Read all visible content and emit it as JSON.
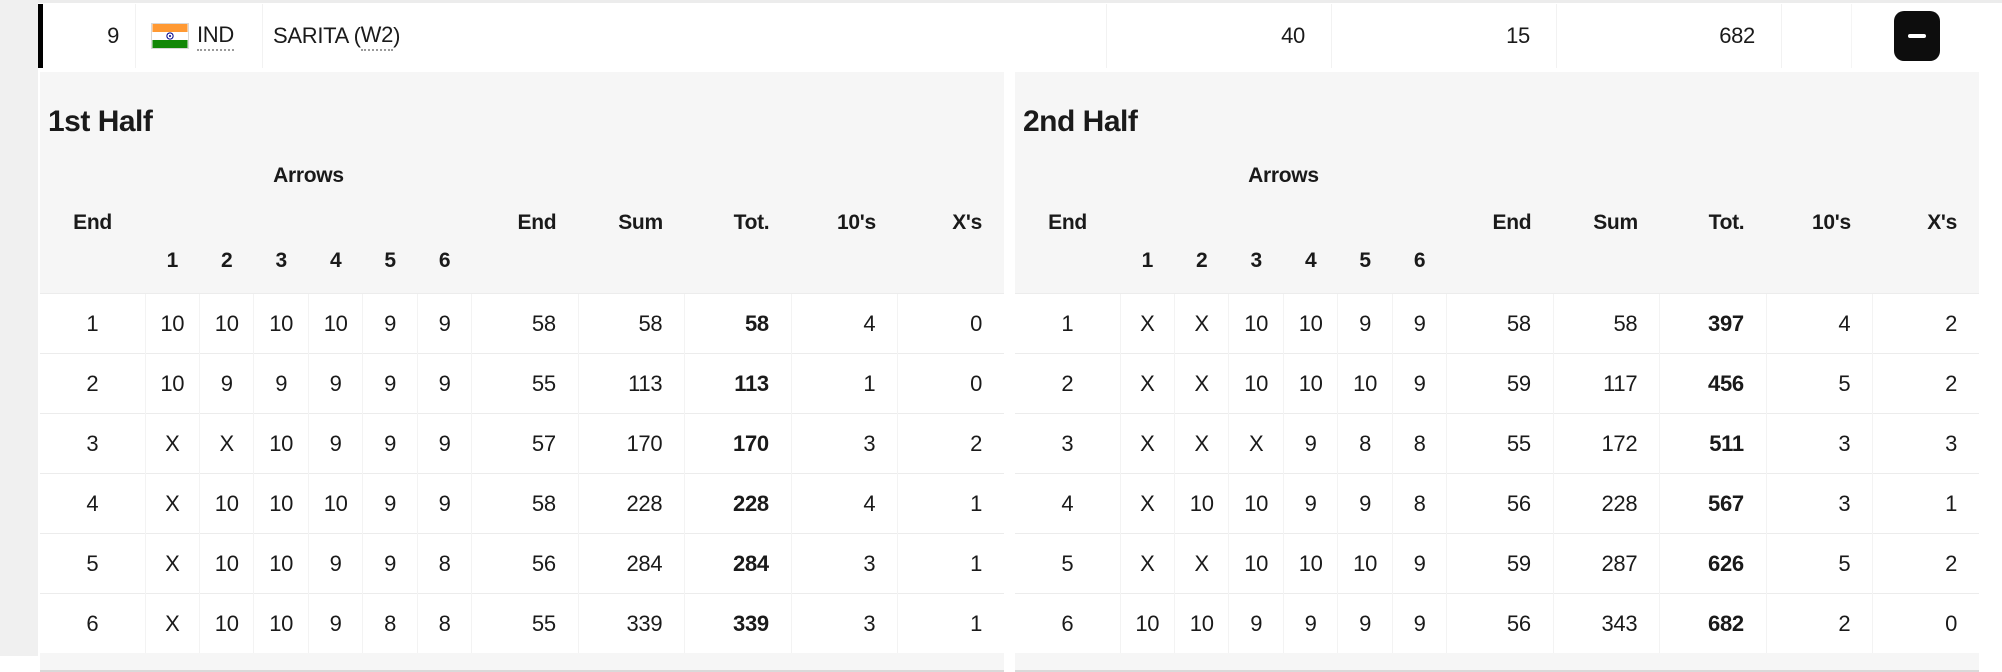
{
  "athlete_row": {
    "rank": "9",
    "noc": "IND",
    "name": "SARITA (",
    "category": "W2",
    "name_suffix": ")",
    "tens_total": "40",
    "x_total": "15",
    "score_total": "682",
    "collapse_button": {
      "icon": "minus"
    }
  },
  "flag": {
    "name": "india-flag",
    "saffron": "#FF9933",
    "white": "#FFFFFF",
    "green": "#138808",
    "chakra": "#000088"
  },
  "colors": {
    "row_accent_border": "#000000",
    "panel_background": "#f6f6f6",
    "collapse_button_background": "#0d0d0d"
  },
  "table_headers": {
    "end": "End",
    "arrows": "Arrows",
    "arrow_numbers": [
      "1",
      "2",
      "3",
      "4",
      "5",
      "6"
    ],
    "end_score": "End",
    "sum": "Sum",
    "total": "Tot.",
    "tens": "10's",
    "xs": "X's"
  },
  "halves": [
    {
      "title": "1st Half",
      "rows": [
        {
          "end": "1",
          "arrows": [
            "10",
            "10",
            "10",
            "10",
            "9",
            "9"
          ],
          "end_score": "58",
          "sum": "58",
          "total": "58",
          "tens": "4",
          "xs": "0"
        },
        {
          "end": "2",
          "arrows": [
            "10",
            "9",
            "9",
            "9",
            "9",
            "9"
          ],
          "end_score": "55",
          "sum": "113",
          "total": "113",
          "tens": "1",
          "xs": "0"
        },
        {
          "end": "3",
          "arrows": [
            "X",
            "X",
            "10",
            "9",
            "9",
            "9"
          ],
          "end_score": "57",
          "sum": "170",
          "total": "170",
          "tens": "3",
          "xs": "2"
        },
        {
          "end": "4",
          "arrows": [
            "X",
            "10",
            "10",
            "10",
            "9",
            "9"
          ],
          "end_score": "58",
          "sum": "228",
          "total": "228",
          "tens": "4",
          "xs": "1"
        },
        {
          "end": "5",
          "arrows": [
            "X",
            "10",
            "10",
            "9",
            "9",
            "8"
          ],
          "end_score": "56",
          "sum": "284",
          "total": "284",
          "tens": "3",
          "xs": "1"
        },
        {
          "end": "6",
          "arrows": [
            "X",
            "10",
            "10",
            "9",
            "8",
            "8"
          ],
          "end_score": "55",
          "sum": "339",
          "total": "339",
          "tens": "3",
          "xs": "1"
        }
      ]
    },
    {
      "title": "2nd Half",
      "rows": [
        {
          "end": "1",
          "arrows": [
            "X",
            "X",
            "10",
            "10",
            "9",
            "9"
          ],
          "end_score": "58",
          "sum": "58",
          "total": "397",
          "tens": "4",
          "xs": "2"
        },
        {
          "end": "2",
          "arrows": [
            "X",
            "X",
            "10",
            "10",
            "10",
            "9"
          ],
          "end_score": "59",
          "sum": "117",
          "total": "456",
          "tens": "5",
          "xs": "2"
        },
        {
          "end": "3",
          "arrows": [
            "X",
            "X",
            "X",
            "9",
            "8",
            "8"
          ],
          "end_score": "55",
          "sum": "172",
          "total": "511",
          "tens": "3",
          "xs": "3"
        },
        {
          "end": "4",
          "arrows": [
            "X",
            "10",
            "10",
            "9",
            "9",
            "8"
          ],
          "end_score": "56",
          "sum": "228",
          "total": "567",
          "tens": "3",
          "xs": "1"
        },
        {
          "end": "5",
          "arrows": [
            "X",
            "X",
            "10",
            "10",
            "10",
            "9"
          ],
          "end_score": "59",
          "sum": "287",
          "total": "626",
          "tens": "5",
          "xs": "2"
        },
        {
          "end": "6",
          "arrows": [
            "10",
            "10",
            "9",
            "9",
            "9",
            "9"
          ],
          "end_score": "56",
          "sum": "343",
          "total": "682",
          "tens": "2",
          "xs": "0"
        }
      ]
    }
  ]
}
